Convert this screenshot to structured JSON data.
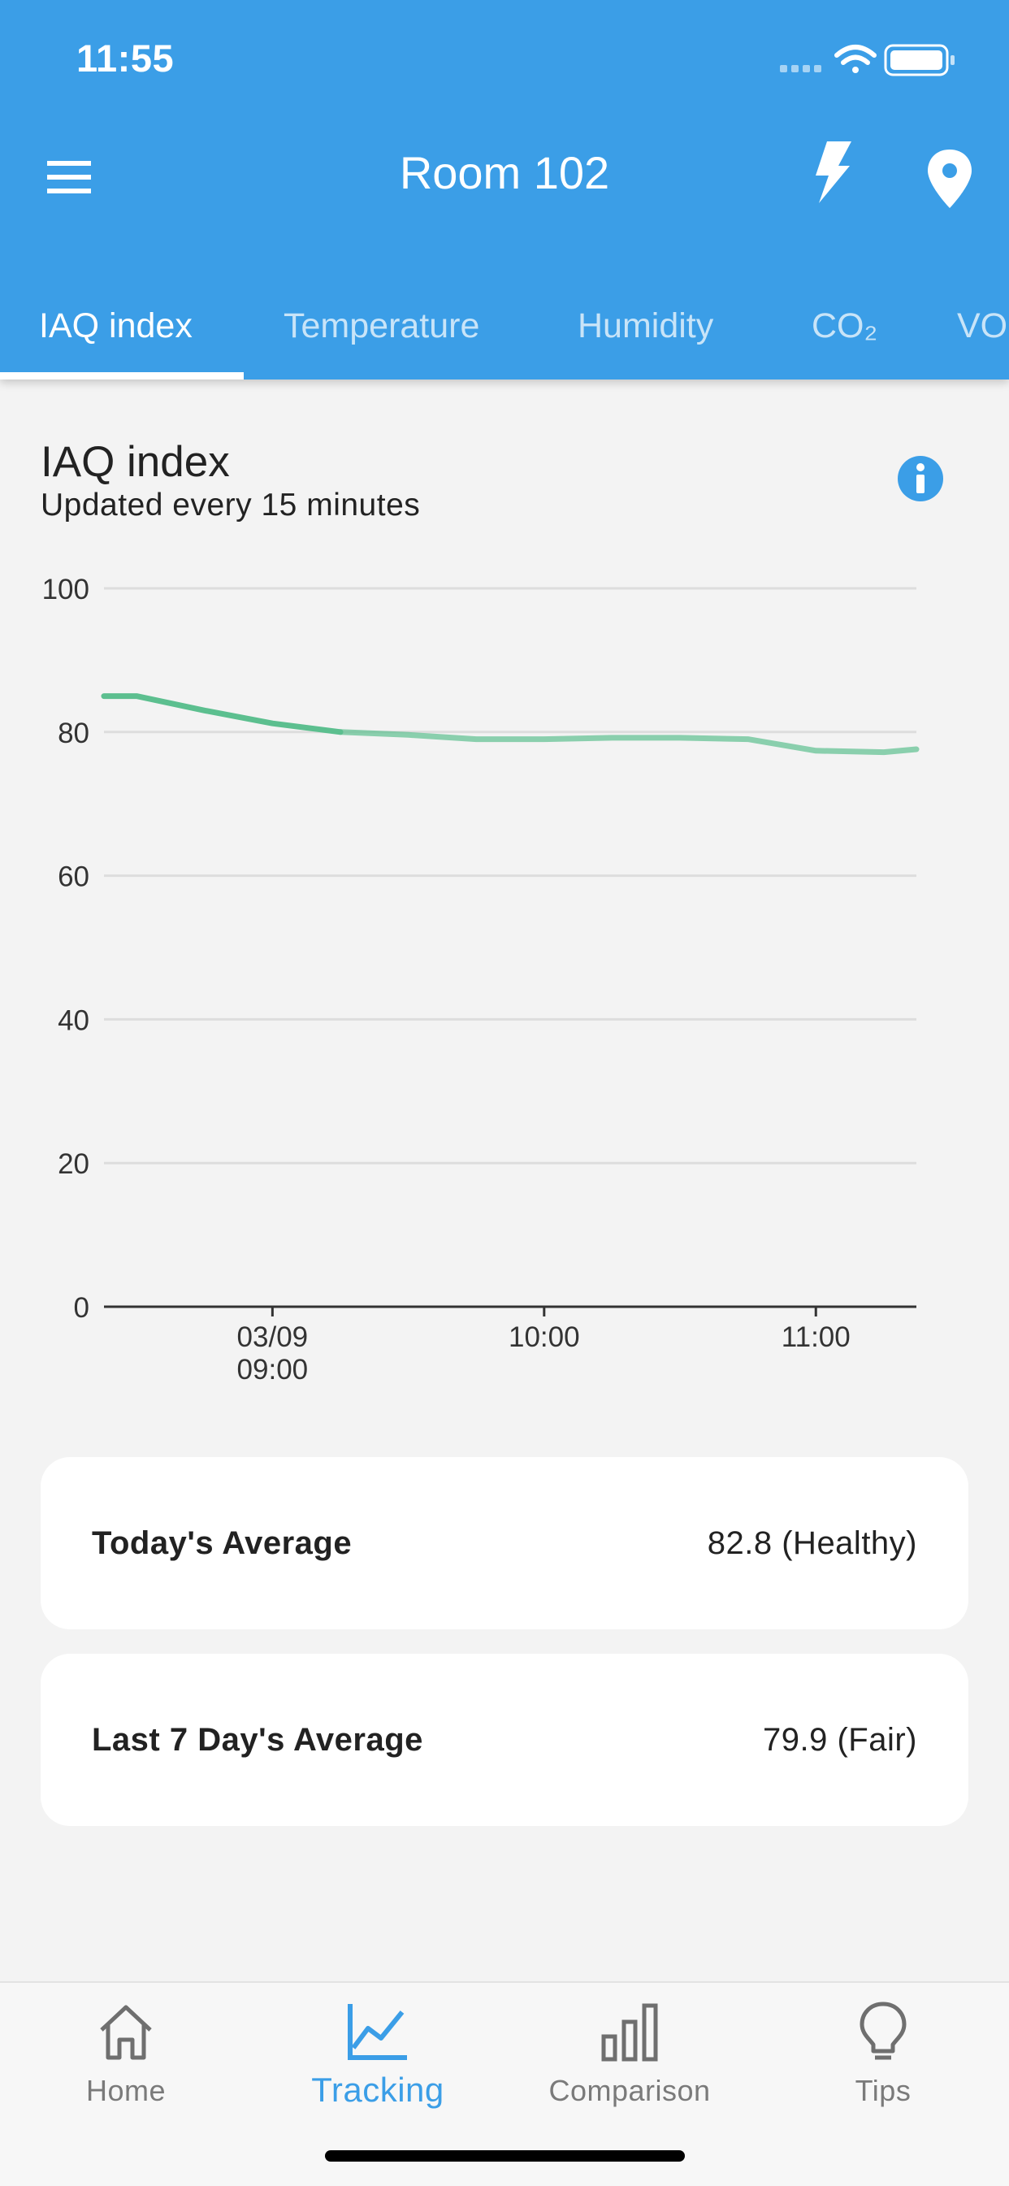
{
  "status_bar": {
    "time": "11:55"
  },
  "header": {
    "title": "Room 102"
  },
  "tabs": [
    {
      "label": "IAQ index",
      "active": true
    },
    {
      "label": "Temperature",
      "active": false
    },
    {
      "label": "Humidity",
      "active": false
    },
    {
      "label": "CO₂",
      "active": false
    },
    {
      "label": "VOC",
      "active": false
    }
  ],
  "section": {
    "title": "IAQ index",
    "subtitle": "Updated every 15 minutes"
  },
  "chart_data": {
    "type": "line",
    "y_ticks": [
      "100",
      "80",
      "60",
      "40",
      "20",
      "0"
    ],
    "ylim": [
      0,
      100
    ],
    "x_ticks": [
      {
        "t": 9.0,
        "label": [
          "03/09",
          "09:00"
        ]
      },
      {
        "t": 10.0,
        "label": [
          "10:00"
        ]
      },
      {
        "t": 11.0,
        "label": [
          "11:00"
        ]
      }
    ],
    "xlim": [
      8.38,
      11.37
    ],
    "grid": true,
    "series": [
      {
        "color": "#5cbf8f",
        "points": [
          [
            8.38,
            85.0
          ],
          [
            8.5,
            85.0
          ],
          [
            8.75,
            83.0
          ],
          [
            9.0,
            81.2
          ],
          [
            9.25,
            80.0
          ],
          [
            9.5,
            79.6
          ],
          [
            9.75,
            79.0
          ],
          [
            10.0,
            79.0
          ],
          [
            10.25,
            79.2
          ],
          [
            10.5,
            79.2
          ],
          [
            10.75,
            79.0
          ],
          [
            11.0,
            77.4
          ],
          [
            11.25,
            77.2
          ],
          [
            11.37,
            77.6
          ]
        ],
        "faded_after": 9.25
      }
    ],
    "axis_color": "#333333",
    "grid_color": "#dddddd"
  },
  "averages": [
    {
      "label": "Today's Average",
      "value": "82.8 (Healthy)"
    },
    {
      "label": "Last 7 Day's Average",
      "value": "79.9 (Fair)"
    }
  ],
  "bottom_nav": [
    {
      "label": "Home",
      "icon": "home-icon",
      "active": false
    },
    {
      "label": "Tracking",
      "icon": "trending-chart-icon",
      "active": true
    },
    {
      "label": "Comparison",
      "icon": "bar-chart-icon",
      "active": false
    },
    {
      "label": "Tips",
      "icon": "lightbulb-icon",
      "active": false
    }
  ],
  "colors": {
    "primary": "#3b9ee7",
    "line": "#5cbf8f",
    "background": "#f3f3f3"
  }
}
